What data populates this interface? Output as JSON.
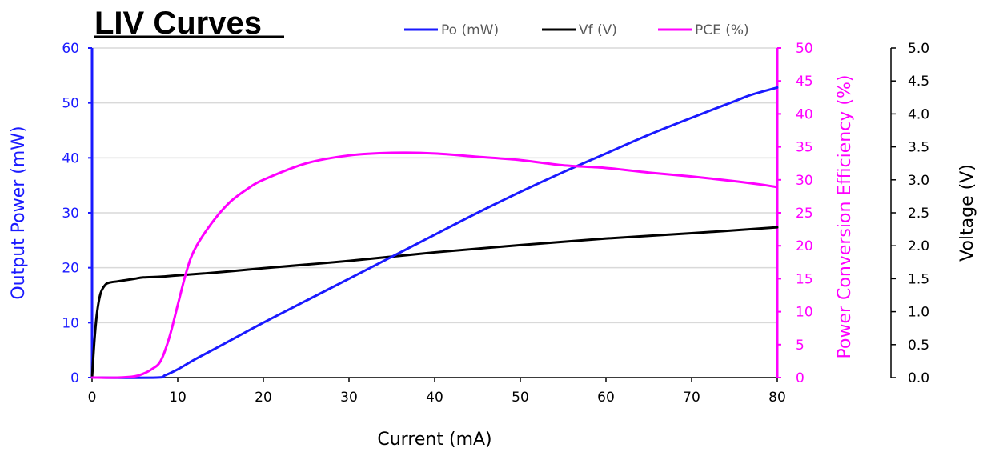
{
  "chart_data": {
    "type": "line",
    "title": "LIV Curves",
    "xlabel": "Current (mA)",
    "xlim": [
      0,
      80
    ],
    "x_ticks": [
      "0",
      "10",
      "20",
      "30",
      "40",
      "50",
      "60",
      "70",
      "80"
    ],
    "grid": true,
    "legend_position": "top",
    "axes": {
      "left": {
        "label": "Output Power (mW)",
        "range": [
          0,
          60
        ],
        "ticks": [
          "0",
          "10",
          "20",
          "30",
          "40",
          "50",
          "60"
        ],
        "color": "#1a1aff"
      },
      "right1": {
        "label": "Power Conversion Efficiency (%)",
        "range": [
          0,
          50
        ],
        "ticks": [
          "0",
          "5",
          "10",
          "15",
          "20",
          "25",
          "30",
          "35",
          "40",
          "45",
          "50"
        ],
        "color": "#ff00ff"
      },
      "right2": {
        "label": "Voltage (V)",
        "range": [
          0,
          5
        ],
        "ticks": [
          "0.0",
          "0.5",
          "1.0",
          "1.5",
          "2.0",
          "2.5",
          "3.0",
          "3.5",
          "4.0",
          "4.5",
          "5.0"
        ],
        "color": "#000000"
      }
    },
    "series": [
      {
        "name": "Po (mW)",
        "axis": "left",
        "color": "#1a1aff",
        "x": [
          0,
          7.5,
          8.5,
          10,
          12,
          15,
          20,
          25,
          30,
          35,
          40,
          45,
          50,
          55,
          60,
          65,
          70,
          75,
          77,
          80
        ],
        "y": [
          0,
          0,
          0.4,
          1.5,
          3.3,
          5.8,
          10,
          14,
          18,
          22,
          26,
          30,
          33.8,
          37.4,
          40.8,
          44.2,
          47.3,
          50.3,
          51.5,
          52.8
        ]
      },
      {
        "name": "Vf (V)",
        "axis": "right2",
        "color": "#000000",
        "x": [
          0,
          0.3,
          0.6,
          1.0,
          1.5,
          2.0,
          3,
          4,
          5,
          6,
          8,
          10,
          15,
          20,
          30,
          40,
          50,
          60,
          70,
          80
        ],
        "y": [
          0,
          0.6,
          1.0,
          1.28,
          1.4,
          1.44,
          1.46,
          1.48,
          1.5,
          1.52,
          1.53,
          1.55,
          1.6,
          1.66,
          1.77,
          1.9,
          2.01,
          2.11,
          2.19,
          2.28
        ]
      },
      {
        "name": "PCE (%)",
        "axis": "right1",
        "color": "#ff00ff",
        "x": [
          0,
          3,
          5,
          6,
          7,
          8,
          9,
          10,
          11,
          12,
          14,
          16,
          18,
          20,
          25,
          30,
          35,
          40,
          45,
          50,
          55,
          60,
          65,
          70,
          75,
          78,
          80
        ],
        "y": [
          0,
          0,
          0.2,
          0.6,
          1.3,
          2.5,
          6,
          11,
          16,
          19.5,
          23.5,
          26.5,
          28.5,
          30,
          32.5,
          33.7,
          34.1,
          34,
          33.5,
          33,
          32.2,
          31.8,
          31.1,
          30.5,
          29.8,
          29.3,
          28.9
        ]
      }
    ]
  }
}
